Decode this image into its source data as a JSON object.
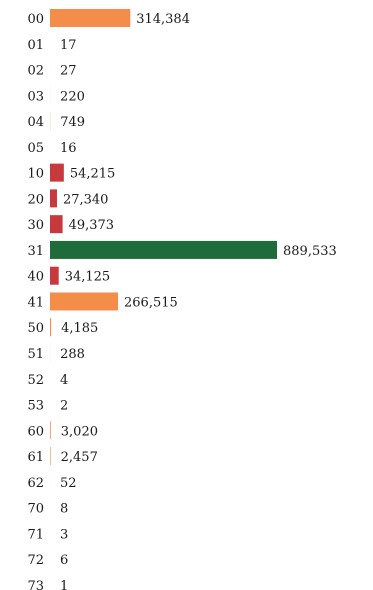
{
  "chart_data": {
    "type": "bar",
    "orientation": "horizontal",
    "title": "",
    "xlabel": "",
    "ylabel": "",
    "grid": false,
    "legend": "none",
    "xlim": [
      0,
      889533
    ],
    "categories": [
      "00",
      "01",
      "02",
      "03",
      "04",
      "05",
      "10",
      "20",
      "30",
      "31",
      "40",
      "41",
      "50",
      "51",
      "52",
      "53",
      "60",
      "61",
      "62",
      "70",
      "71",
      "72",
      "73"
    ],
    "values": [
      314384,
      17,
      27,
      220,
      749,
      16,
      54215,
      27340,
      49373,
      889533,
      34125,
      266515,
      4185,
      288,
      4,
      2,
      3020,
      2457,
      52,
      8,
      3,
      6,
      1
    ],
    "value_labels": [
      "314,384",
      "17",
      "27",
      "220",
      "749",
      "16",
      "54,215",
      "27,340",
      "49,373",
      "889,533",
      "34,125",
      "266,515",
      "4,185",
      "288",
      "4",
      "2",
      "3,020",
      "2,457",
      "52",
      "8",
      "3",
      "6",
      "1"
    ],
    "bar_colors": [
      "#f58d4a",
      "#f58d4a",
      "#f58d4a",
      "#f58d4a",
      "#f58d4a",
      "#f58d4a",
      "#c8393d",
      "#c8393d",
      "#c8393d",
      "#1f6b3a",
      "#c8393d",
      "#f58d4a",
      "#f58d4a",
      "#f58d4a",
      "#f58d4a",
      "#f58d4a",
      "#f58d4a",
      "#f58d4a",
      "#f58d4a",
      "#f58d4a",
      "#f58d4a",
      "#f58d4a",
      "#f58d4a"
    ]
  }
}
